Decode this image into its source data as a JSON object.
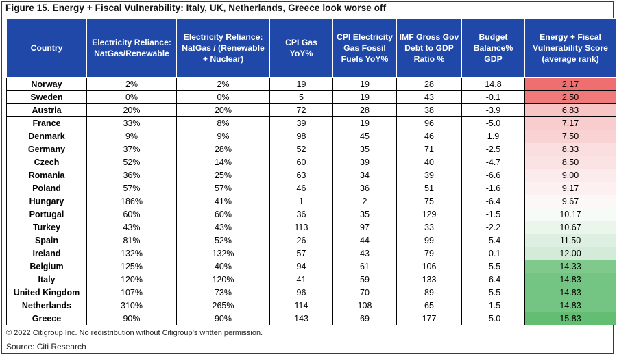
{
  "title": "Figure 15. Energy + Fiscal Vulnerability: Italy, UK, Netherlands, Greece look worse off",
  "columns": [
    {
      "lines": [
        "Country"
      ]
    },
    {
      "lines": [
        "Electricity Reliance:",
        "NatGas/Renewable"
      ]
    },
    {
      "lines": [
        "Electricity Reliance:",
        "NatGas / (Renewable",
        "+ Nuclear)"
      ]
    },
    {
      "lines": [
        "CPI Gas",
        "YoY%"
      ]
    },
    {
      "lines": [
        "CPI Electricity",
        "Gas Fossil",
        "Fuels YoY%"
      ]
    },
    {
      "lines": [
        "IMF Gross Gov",
        "Debt to GDP",
        "Ratio %"
      ]
    },
    {
      "lines": [
        "Budget",
        "Balance% GDP"
      ]
    },
    {
      "lines": [
        "Energy + Fiscal",
        "Vulnerability Score",
        "(average rank)"
      ]
    }
  ],
  "rows": [
    {
      "country": "Norway",
      "ng_ren": "2%",
      "ng_ren_nuc": "2%",
      "cpi_gas": "19",
      "cpi_elec": "19",
      "debt": "28",
      "budget": "14.8",
      "score": "2.17",
      "score_color": "#ef6f71"
    },
    {
      "country": "Sweden",
      "ng_ren": "0%",
      "ng_ren_nuc": "0%",
      "cpi_gas": "5",
      "cpi_elec": "19",
      "debt": "43",
      "budget": "-0.1",
      "score": "2.50",
      "score_color": "#f0797a"
    },
    {
      "country": "Austria",
      "ng_ren": "20%",
      "ng_ren_nuc": "20%",
      "cpi_gas": "72",
      "cpi_elec": "28",
      "debt": "38",
      "budget": "-3.9",
      "score": "6.83",
      "score_color": "#f8c5c7"
    },
    {
      "country": "France",
      "ng_ren": "33%",
      "ng_ren_nuc": "8%",
      "cpi_gas": "39",
      "cpi_elec": "19",
      "debt": "96",
      "budget": "-5.0",
      "score": "7.17",
      "score_color": "#f9cdce"
    },
    {
      "country": "Denmark",
      "ng_ren": "9%",
      "ng_ren_nuc": "9%",
      "cpi_gas": "98",
      "cpi_elec": "45",
      "debt": "46",
      "budget": "1.9",
      "score": "7.50",
      "score_color": "#f9d2d3"
    },
    {
      "country": "Germany",
      "ng_ren": "37%",
      "ng_ren_nuc": "28%",
      "cpi_gas": "52",
      "cpi_elec": "35",
      "debt": "71",
      "budget": "-2.5",
      "score": "8.33",
      "score_color": "#fbdfe0"
    },
    {
      "country": "Czech",
      "ng_ren": "52%",
      "ng_ren_nuc": "14%",
      "cpi_gas": "60",
      "cpi_elec": "39",
      "debt": "40",
      "budget": "-4.7",
      "score": "8.50",
      "score_color": "#fbe3e4"
    },
    {
      "country": "Romania",
      "ng_ren": "36%",
      "ng_ren_nuc": "25%",
      "cpi_gas": "63",
      "cpi_elec": "34",
      "debt": "39",
      "budget": "-6.6",
      "score": "9.00",
      "score_color": "#fcebec"
    },
    {
      "country": "Poland",
      "ng_ren": "57%",
      "ng_ren_nuc": "57%",
      "cpi_gas": "46",
      "cpi_elec": "36",
      "debt": "51",
      "budget": "-1.6",
      "score": "9.17",
      "score_color": "#fcf0f0"
    },
    {
      "country": "Hungary",
      "ng_ren": "186%",
      "ng_ren_nuc": "41%",
      "cpi_gas": "1",
      "cpi_elec": "2",
      "debt": "75",
      "budget": "-6.4",
      "score": "9.67",
      "score_color": "#fdf8f8"
    },
    {
      "country": "Portugal",
      "ng_ren": "60%",
      "ng_ren_nuc": "60%",
      "cpi_gas": "36",
      "cpi_elec": "35",
      "debt": "129",
      "budget": "-1.5",
      "score": "10.17",
      "score_color": "#f6fbf7"
    },
    {
      "country": "Turkey",
      "ng_ren": "43%",
      "ng_ren_nuc": "43%",
      "cpi_gas": "113",
      "cpi_elec": "97",
      "debt": "33",
      "budget": "-2.2",
      "score": "10.67",
      "score_color": "#eaf5ec"
    },
    {
      "country": "Spain",
      "ng_ren": "81%",
      "ng_ren_nuc": "52%",
      "cpi_gas": "26",
      "cpi_elec": "44",
      "debt": "99",
      "budget": "-5.4",
      "score": "11.50",
      "score_color": "#dcefe0"
    },
    {
      "country": "Ireland",
      "ng_ren": "132%",
      "ng_ren_nuc": "132%",
      "cpi_gas": "57",
      "cpi_elec": "43",
      "debt": "79",
      "budget": "-0.1",
      "score": "12.00",
      "score_color": "#d3ebd8"
    },
    {
      "country": "Belgium",
      "ng_ren": "125%",
      "ng_ren_nuc": "40%",
      "cpi_gas": "94",
      "cpi_elec": "61",
      "debt": "106",
      "budget": "-5.5",
      "score": "14.33",
      "score_color": "#80c98c"
    },
    {
      "country": "Italy",
      "ng_ren": "120%",
      "ng_ren_nuc": "120%",
      "cpi_gas": "41",
      "cpi_elec": "59",
      "debt": "133",
      "budget": "-6.4",
      "score": "14.83",
      "score_color": "#74c483"
    },
    {
      "country": "United Kingdom",
      "ng_ren": "107%",
      "ng_ren_nuc": "73%",
      "cpi_gas": "96",
      "cpi_elec": "70",
      "debt": "89",
      "budget": "-5.5",
      "score": "14.83",
      "score_color": "#74c483"
    },
    {
      "country": "Netherlands",
      "ng_ren": "310%",
      "ng_ren_nuc": "265%",
      "cpi_gas": "114",
      "cpi_elec": "108",
      "debt": "65",
      "budget": "-1.5",
      "score": "14.83",
      "score_color": "#74c483"
    },
    {
      "country": "Greece",
      "ng_ren": "90%",
      "ng_ren_nuc": "90%",
      "cpi_gas": "143",
      "cpi_elec": "69",
      "debt": "177",
      "budget": "-5.0",
      "score": "15.83",
      "score_color": "#63bd73"
    }
  ],
  "footnote": "© 2022 Citigroup Inc. No redistribution without Citigroup’s written permission.",
  "source": "Source: Citi Research",
  "colors": {
    "header_bg": "#1f48a8",
    "header_text": "#ffffff",
    "frame": "#1f3b7a"
  }
}
